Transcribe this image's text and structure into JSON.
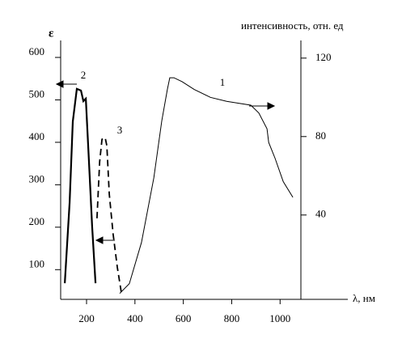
{
  "chart_data": {
    "type": "line",
    "y_label": "ε",
    "y2_label": "интенсивность, отн. ед",
    "x_label": "λ, нм",
    "xlim": [
      93,
      1086
    ],
    "xticks": [
      200,
      400,
      600,
      800,
      1000
    ],
    "ylim": [
      30,
      640
    ],
    "yticks": [
      100,
      200,
      300,
      400,
      500,
      600
    ],
    "y2lim": [
      -3,
      129
    ],
    "y2ticks": [
      40,
      80,
      120
    ],
    "series": [
      {
        "name": "1",
        "color": "#000000",
        "axis": "y2",
        "dashed": false,
        "x": [
          337,
          377,
          427,
          478,
          511,
          534,
          544,
          561,
          595,
          645,
          712,
          779,
          829,
          879,
          912,
          946,
          953,
          979,
          1013,
          1053
        ],
        "values": [
          0,
          5,
          26,
          59,
          88,
          104,
          110,
          110,
          108,
          104,
          100,
          98,
          97,
          96,
          92,
          84,
          77,
          69,
          57,
          49
        ]
      },
      {
        "name": "2",
        "color": "#000000",
        "axis": "y",
        "dashed": false,
        "x": [
          110,
          130,
          143,
          160,
          177,
          187,
          197,
          210,
          223,
          237
        ],
        "values": [
          68,
          259,
          449,
          526,
          522,
          497,
          503,
          354,
          202,
          68
        ]
      },
      {
        "name": "3",
        "color": "#000000",
        "axis": "y",
        "dashed": true,
        "x": [
          243,
          254,
          264,
          277,
          284,
          294,
          310,
          327,
          344
        ],
        "values": [
          221,
          354,
          407,
          411,
          392,
          278,
          183,
          106,
          45
        ]
      }
    ]
  }
}
